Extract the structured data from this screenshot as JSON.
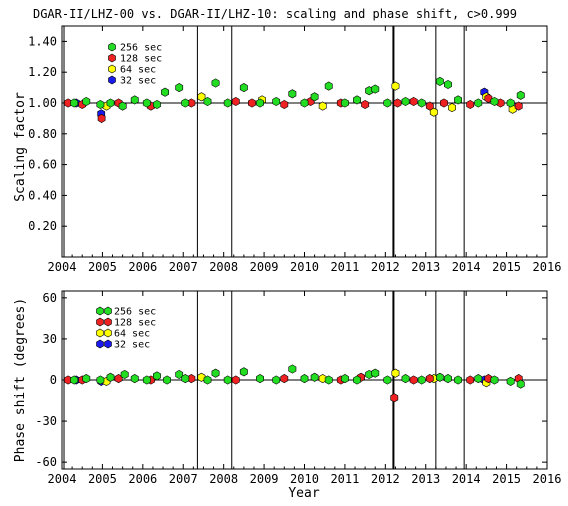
{
  "title": "DGAR-II/LHZ-00 vs. DGAR-II/LHZ-10: scaling and phase shift, c>0.999",
  "xlabel": "Year",
  "colors": {
    "256 sec": "#22dd22",
    "128 sec": "#ee2222",
    "64 sec": "#ffff00",
    "32 sec": "#1a1aee",
    "axis": "#000000"
  },
  "chart_data": [
    {
      "type": "scatter",
      "title": "DGAR-II/LHZ-00 vs. DGAR-II/LHZ-10: scaling and phase shift, c>0.999",
      "xlabel": "",
      "ylabel": "Scaling factor",
      "xlim": [
        2004,
        2016
      ],
      "ylim": [
        0,
        1.5
      ],
      "xticks": [
        "2004",
        "2005",
        "2006",
        "2007",
        "2008",
        "2009",
        "2010",
        "2011",
        "2012",
        "2013",
        "2014",
        "2015",
        "2016"
      ],
      "yticks": [
        "0.20",
        "0.40",
        "0.60",
        "0.80",
        "1.00",
        "1.20",
        "1.40"
      ],
      "ytick_values": [
        0.2,
        0.4,
        0.6,
        0.8,
        1.0,
        1.2,
        1.4
      ],
      "reference_line": 1.0,
      "vertical_lines": [
        2004.05,
        2007.35,
        2008.2,
        2012.2,
        2013.25,
        2013.95
      ],
      "legend_position": "top-left",
      "series": [
        {
          "name": "256 sec",
          "x": [
            2004.3,
            2004.6,
            2004.95,
            2005.2,
            2005.5,
            2005.8,
            2006.1,
            2006.35,
            2006.55,
            2006.9,
            2007.05,
            2007.6,
            2007.8,
            2008.1,
            2008.5,
            2008.9,
            2009.3,
            2009.7,
            2010.0,
            2010.25,
            2010.6,
            2011.0,
            2011.3,
            2011.6,
            2011.75,
            2012.05,
            2012.5,
            2012.9,
            2013.35,
            2013.55,
            2013.8,
            2014.3,
            2014.7,
            2015.1,
            2015.35
          ],
          "y": [
            1.0,
            1.01,
            0.99,
            1.0,
            0.98,
            1.02,
            1.0,
            0.99,
            1.07,
            1.1,
            1.0,
            1.01,
            1.13,
            1.0,
            1.1,
            1.0,
            1.01,
            1.06,
            1.0,
            1.04,
            1.11,
            1.0,
            1.02,
            1.08,
            1.09,
            1.0,
            1.01,
            1.0,
            1.14,
            1.12,
            1.02,
            1.0,
            1.01,
            1.0,
            1.05
          ]
        },
        {
          "name": "128 sec",
          "x": [
            2004.15,
            2004.5,
            2004.98,
            2005.4,
            2006.2,
            2007.2,
            2008.3,
            2008.7,
            2009.5,
            2010.15,
            2010.9,
            2011.5,
            2012.3,
            2012.7,
            2013.1,
            2013.45,
            2014.1,
            2014.55,
            2014.85,
            2015.3
          ],
          "y": [
            1.0,
            0.99,
            0.9,
            1.0,
            0.98,
            1.0,
            1.01,
            1.0,
            0.99,
            1.01,
            1.0,
            0.99,
            1.0,
            1.01,
            0.98,
            1.0,
            0.99,
            1.03,
            1.0,
            0.98
          ]
        },
        {
          "name": "64 sec",
          "x": [
            2005.1,
            2007.45,
            2008.95,
            2010.45,
            2012.25,
            2013.2,
            2013.65,
            2014.5,
            2015.15
          ],
          "y": [
            0.98,
            1.04,
            1.02,
            0.98,
            1.11,
            0.94,
            0.97,
            1.04,
            0.96
          ]
        },
        {
          "name": "32 sec",
          "x": [
            2004.35,
            2004.97,
            2014.45
          ],
          "y": [
            1.0,
            0.93,
            1.07
          ]
        }
      ]
    },
    {
      "type": "scatter",
      "title": "",
      "xlabel": "Year",
      "ylabel": "Phase shift (degrees)",
      "xlim": [
        2004,
        2016
      ],
      "ylim": [
        -65,
        65
      ],
      "xticks": [
        "2004",
        "2005",
        "2006",
        "2007",
        "2008",
        "2009",
        "2010",
        "2011",
        "2012",
        "2013",
        "2014",
        "2015",
        "2016"
      ],
      "yticks": [
        "60",
        "30",
        "0",
        "-30",
        "-60"
      ],
      "ytick_values": [
        60,
        30,
        0,
        -30,
        -60
      ],
      "reference_line": 0,
      "vertical_lines": [
        2004.05,
        2007.35,
        2008.2,
        2012.2,
        2013.25,
        2013.95
      ],
      "legend_position": "top-left",
      "series": [
        {
          "name": "256 sec",
          "x": [
            2004.3,
            2004.6,
            2004.95,
            2005.2,
            2005.55,
            2005.8,
            2006.1,
            2006.35,
            2006.6,
            2006.9,
            2007.05,
            2007.6,
            2007.8,
            2008.1,
            2008.5,
            2008.9,
            2009.3,
            2009.7,
            2010.0,
            2010.25,
            2010.6,
            2011.0,
            2011.3,
            2011.6,
            2011.75,
            2012.05,
            2012.5,
            2012.9,
            2013.35,
            2013.55,
            2013.8,
            2014.3,
            2014.7,
            2015.1,
            2015.35
          ],
          "y": [
            0,
            1,
            0,
            2,
            4,
            1,
            0,
            3,
            0,
            4,
            1,
            0,
            5,
            0,
            6,
            1,
            0,
            8,
            1,
            2,
            0,
            1,
            0,
            4,
            5,
            0,
            1,
            0,
            2,
            1,
            0,
            1,
            0,
            -1,
            -3
          ]
        },
        {
          "name": "128 sec",
          "x": [
            2004.15,
            2004.5,
            2005.4,
            2006.2,
            2007.2,
            2008.3,
            2009.5,
            2010.9,
            2011.4,
            2012.22,
            2012.7,
            2013.1,
            2014.1,
            2014.55,
            2015.3
          ],
          "y": [
            0,
            0,
            1,
            0,
            1,
            0,
            1,
            0,
            2,
            -13,
            0,
            1,
            0,
            1,
            1
          ]
        },
        {
          "name": "64 sec",
          "x": [
            2005.1,
            2007.45,
            2010.45,
            2012.25,
            2013.2,
            2014.5
          ],
          "y": [
            -1,
            2,
            1,
            5,
            1,
            -2
          ]
        },
        {
          "name": "32 sec",
          "x": [
            2004.35,
            2004.97,
            2014.45
          ],
          "y": [
            0,
            -1,
            0
          ]
        }
      ]
    }
  ]
}
